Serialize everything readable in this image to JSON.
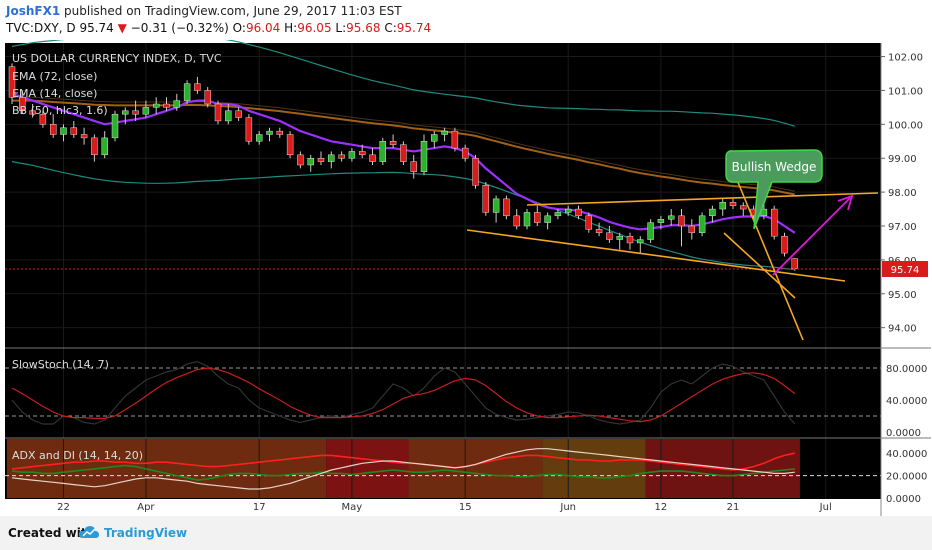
{
  "header": {
    "author": "JoshFX1",
    "published_text": "published on TradingView.com, June 29, 2017 11:03 EST",
    "symbol": "TVC:DXY, D",
    "last": "95.74",
    "change": "−0.31 (−0.32%)",
    "o_label": "O:",
    "o": "96.04",
    "h_label": "H:",
    "h": "96.05",
    "l_label": "L:",
    "l": "95.68",
    "c_label": "C:",
    "c": "95.74"
  },
  "panels": {
    "main": {
      "title": "US DOLLAR CURRENCY INDEX, D, TVC",
      "indicators": [
        "EMA (72, close)",
        "EMA (14, close)",
        "BB (50, hlc3, 1.6)"
      ],
      "y_ticks": [
        "102.00",
        "101.00",
        "100.00",
        "99.00",
        "98.00",
        "97.00",
        "96.00",
        "95.00",
        "94.00"
      ],
      "price_badge": "95.74",
      "annotation": "Bullish Wedge"
    },
    "stoch": {
      "title": "SlowStoch (14, 7)",
      "y_ticks": [
        "80.0000",
        "40.0000",
        "0.0000"
      ]
    },
    "adx": {
      "title": "ADX and DI (14, 14, 20)",
      "y_ticks": [
        "40.0000",
        "20.0000",
        "0.0000"
      ]
    }
  },
  "x_ticks": [
    "22",
    "Apr",
    "17",
    "May",
    "15",
    "Jun",
    "12",
    "21",
    "Jul"
  ],
  "footer": {
    "created_with": "Created with",
    "brand": "TradingView"
  },
  "colors": {
    "background": "#000000",
    "bull": "#2bb12b",
    "bear": "#d81b1b",
    "ema14": "#9b30ff",
    "ema72": "#b36a1a",
    "bb": "#1f8a80",
    "wedge": "#f5a623",
    "arrow": "#d81bd8",
    "callout_border": "#3fd84a"
  },
  "chart_data": [
    {
      "type": "candlestick",
      "title": "US DOLLAR CURRENCY INDEX, D, TVC",
      "ylim": [
        93.4,
        102.4
      ],
      "dates": [
        "Mar 15",
        "Mar 16",
        "Mar 17",
        "Mar 20",
        "Mar 21",
        "Mar 22",
        "Mar 23",
        "Mar 24",
        "Mar 27",
        "Mar 28",
        "Mar 29",
        "Mar 30",
        "Mar 31",
        "Apr 3",
        "Apr 4",
        "Apr 5",
        "Apr 6",
        "Apr 7",
        "Apr 10",
        "Apr 11",
        "Apr 12",
        "Apr 13",
        "Apr 14",
        "Apr 17",
        "Apr 18",
        "Apr 19",
        "Apr 20",
        "Apr 21",
        "Apr 24",
        "Apr 25",
        "Apr 26",
        "Apr 27",
        "Apr 28",
        "May 1",
        "May 2",
        "May 3",
        "May 4",
        "May 5",
        "May 8",
        "May 9",
        "May 10",
        "May 11",
        "May 12",
        "May 15",
        "May 16",
        "May 17",
        "May 18",
        "May 19",
        "May 22",
        "May 23",
        "May 24",
        "May 25",
        "May 26",
        "May 29",
        "May 30",
        "May 31",
        "Jun 1",
        "Jun 2",
        "Jun 5",
        "Jun 6",
        "Jun 7",
        "Jun 8",
        "Jun 9",
        "Jun 12",
        "Jun 13",
        "Jun 14",
        "Jun 15",
        "Jun 16",
        "Jun 19",
        "Jun 20",
        "Jun 21",
        "Jun 22",
        "Jun 23",
        "Jun 26",
        "Jun 27",
        "Jun 28",
        "Jun 29"
      ],
      "ohlc": [
        [
          101.7,
          101.8,
          100.6,
          100.8
        ],
        [
          100.8,
          101.0,
          100.3,
          100.4
        ],
        [
          100.4,
          100.6,
          100.2,
          100.3
        ],
        [
          100.3,
          100.4,
          99.9,
          100.0
        ],
        [
          100.0,
          100.3,
          99.6,
          99.7
        ],
        [
          99.7,
          100.0,
          99.5,
          99.9
        ],
        [
          99.9,
          100.1,
          99.6,
          99.7
        ],
        [
          99.7,
          99.9,
          99.4,
          99.6
        ],
        [
          99.6,
          99.7,
          98.9,
          99.1
        ],
        [
          99.1,
          99.8,
          99.0,
          99.6
        ],
        [
          99.6,
          100.4,
          99.5,
          100.3
        ],
        [
          100.3,
          100.5,
          100.0,
          100.4
        ],
        [
          100.4,
          100.7,
          100.1,
          100.3
        ],
        [
          100.3,
          100.7,
          100.2,
          100.5
        ],
        [
          100.5,
          100.8,
          100.3,
          100.6
        ],
        [
          100.6,
          100.8,
          100.4,
          100.5
        ],
        [
          100.5,
          100.9,
          100.4,
          100.7
        ],
        [
          100.7,
          101.3,
          100.6,
          101.2
        ],
        [
          101.2,
          101.4,
          100.9,
          101.0
        ],
        [
          101.0,
          101.1,
          100.5,
          100.6
        ],
        [
          100.6,
          100.7,
          100.0,
          100.1
        ],
        [
          100.1,
          100.6,
          100.0,
          100.4
        ],
        [
          100.4,
          100.5,
          100.1,
          100.2
        ],
        [
          100.2,
          100.3,
          99.4,
          99.5
        ],
        [
          99.5,
          99.8,
          99.4,
          99.7
        ],
        [
          99.7,
          99.9,
          99.5,
          99.8
        ],
        [
          99.8,
          99.9,
          99.6,
          99.7
        ],
        [
          99.7,
          99.8,
          99.0,
          99.1
        ],
        [
          99.1,
          99.2,
          98.7,
          98.8
        ],
        [
          98.8,
          99.1,
          98.6,
          99.0
        ],
        [
          99.0,
          99.2,
          98.8,
          98.9
        ],
        [
          98.9,
          99.2,
          98.7,
          99.1
        ],
        [
          99.1,
          99.2,
          98.9,
          99.0
        ],
        [
          99.0,
          99.3,
          98.9,
          99.2
        ],
        [
          99.2,
          99.4,
          99.0,
          99.1
        ],
        [
          99.1,
          99.3,
          98.8,
          98.9
        ],
        [
          98.9,
          99.6,
          98.8,
          99.5
        ],
        [
          99.5,
          99.7,
          99.3,
          99.4
        ],
        [
          99.4,
          99.5,
          98.8,
          98.9
        ],
        [
          98.9,
          99.1,
          98.4,
          98.6
        ],
        [
          98.6,
          99.7,
          98.5,
          99.5
        ],
        [
          99.5,
          99.8,
          99.3,
          99.7
        ],
        [
          99.7,
          99.9,
          99.5,
          99.8
        ],
        [
          99.8,
          99.9,
          99.2,
          99.3
        ],
        [
          99.3,
          99.4,
          98.9,
          99.0
        ],
        [
          99.0,
          99.1,
          98.1,
          98.2
        ],
        [
          98.2,
          98.3,
          97.3,
          97.4
        ],
        [
          97.4,
          97.9,
          97.1,
          97.8
        ],
        [
          97.8,
          97.9,
          97.2,
          97.3
        ],
        [
          97.3,
          97.5,
          96.9,
          97.0
        ],
        [
          97.0,
          97.5,
          96.9,
          97.4
        ],
        [
          97.4,
          97.6,
          97.0,
          97.1
        ],
        [
          97.1,
          97.4,
          96.9,
          97.3
        ],
        [
          97.3,
          97.5,
          97.2,
          97.4
        ],
        [
          97.4,
          97.6,
          97.3,
          97.5
        ],
        [
          97.5,
          97.6,
          97.2,
          97.3
        ],
        [
          97.3,
          97.4,
          96.8,
          96.9
        ],
        [
          96.9,
          97.1,
          96.7,
          96.8
        ],
        [
          96.8,
          97.0,
          96.5,
          96.6
        ],
        [
          96.6,
          96.8,
          96.3,
          96.7
        ],
        [
          96.7,
          96.8,
          96.3,
          96.5
        ],
        [
          96.5,
          96.7,
          96.2,
          96.6
        ],
        [
          96.6,
          97.2,
          96.5,
          97.1
        ],
        [
          97.1,
          97.3,
          96.9,
          97.2
        ],
        [
          97.2,
          97.5,
          97.0,
          97.3
        ],
        [
          97.3,
          97.5,
          96.4,
          97.0
        ],
        [
          97.0,
          97.2,
          96.6,
          96.8
        ],
        [
          96.8,
          97.4,
          96.7,
          97.3
        ],
        [
          97.3,
          97.6,
          97.1,
          97.5
        ],
        [
          97.5,
          97.8,
          97.3,
          97.7
        ],
        [
          97.7,
          97.8,
          97.5,
          97.6
        ],
        [
          97.6,
          97.7,
          97.3,
          97.5
        ],
        [
          97.5,
          97.6,
          97.2,
          97.3
        ],
        [
          97.3,
          97.7,
          97.2,
          97.5
        ],
        [
          97.5,
          97.6,
          96.6,
          96.7
        ],
        [
          96.7,
          96.8,
          96.1,
          96.2
        ],
        [
          96.04,
          96.05,
          95.68,
          95.74
        ]
      ],
      "series": [
        {
          "name": "EMA (14, close)",
          "values": [
            100.9,
            100.8,
            100.7,
            100.6,
            100.5,
            100.4,
            100.3,
            100.2,
            100.1,
            100.0,
            100.05,
            100.1,
            100.15,
            100.2,
            100.3,
            100.4,
            100.5,
            100.65,
            100.7,
            100.7,
            100.6,
            100.6,
            100.55,
            100.4,
            100.3,
            100.2,
            100.1,
            99.95,
            99.8,
            99.7,
            99.6,
            99.5,
            99.45,
            99.4,
            99.35,
            99.3,
            99.3,
            99.3,
            99.25,
            99.2,
            99.25,
            99.3,
            99.35,
            99.3,
            99.2,
            99.0,
            98.7,
            98.45,
            98.2,
            97.95,
            97.8,
            97.65,
            97.55,
            97.5,
            97.48,
            97.45,
            97.35,
            97.25,
            97.12,
            97.03,
            96.95,
            96.9,
            96.93,
            96.97,
            97.02,
            97.03,
            97.0,
            97.05,
            97.12,
            97.2,
            97.25,
            97.28,
            97.28,
            97.3,
            97.2,
            97.0,
            96.8
          ]
        },
        {
          "name": "EMA (72, close)",
          "values": [
            100.7,
            100.7,
            100.7,
            100.68,
            100.66,
            100.64,
            100.62,
            100.6,
            100.58,
            100.57,
            100.56,
            100.56,
            100.56,
            100.56,
            100.56,
            100.56,
            100.56,
            100.57,
            100.57,
            100.56,
            100.54,
            100.53,
            100.51,
            100.48,
            100.45,
            100.42,
            100.39,
            100.35,
            100.31,
            100.27,
            100.23,
            100.19,
            100.15,
            100.11,
            100.07,
            100.03,
            100.0,
            99.97,
            99.93,
            99.88,
            99.85,
            99.82,
            99.79,
            99.75,
            99.71,
            99.66,
            99.58,
            99.5,
            99.42,
            99.34,
            99.27,
            99.2,
            99.13,
            99.07,
            99.01,
            98.95,
            98.88,
            98.82,
            98.75,
            98.69,
            98.62,
            98.56,
            98.51,
            98.46,
            98.42,
            98.37,
            98.32,
            98.28,
            98.25,
            98.21,
            98.18,
            98.15,
            98.12,
            98.09,
            98.05,
            97.99,
            97.93
          ]
        }
      ],
      "trendlines": [
        "wedge-upper",
        "wedge-lower",
        "breakout-down-1",
        "breakout-down-2",
        "projection-arrow"
      ],
      "annotations": [
        "Bullish Wedge"
      ]
    },
    {
      "type": "line",
      "title": "SlowStoch (14, 7)",
      "ylim": [
        0,
        100
      ],
      "levels": [
        80,
        20
      ],
      "series": [
        {
          "name": "%K",
          "values": [
            40,
            25,
            15,
            10,
            10,
            20,
            18,
            12,
            10,
            15,
            30,
            45,
            55,
            65,
            70,
            75,
            78,
            85,
            88,
            82,
            70,
            60,
            55,
            40,
            30,
            25,
            20,
            15,
            12,
            15,
            18,
            20,
            18,
            22,
            25,
            30,
            45,
            60,
            55,
            45,
            55,
            70,
            80,
            75,
            60,
            45,
            30,
            22,
            18,
            15,
            16,
            18,
            20,
            22,
            25,
            24,
            20,
            15,
            12,
            10,
            12,
            15,
            30,
            50,
            60,
            65,
            60,
            70,
            80,
            85,
            82,
            75,
            70,
            65,
            45,
            25,
            10
          ]
        },
        {
          "name": "%D",
          "values": [
            55,
            48,
            40,
            32,
            25,
            20,
            18,
            18,
            17,
            17,
            20,
            28,
            36,
            45,
            54,
            62,
            68,
            73,
            78,
            80,
            78,
            74,
            68,
            62,
            54,
            47,
            40,
            32,
            26,
            21,
            18,
            18,
            18,
            19,
            20,
            23,
            28,
            35,
            42,
            46,
            48,
            52,
            58,
            64,
            67,
            65,
            58,
            48,
            38,
            30,
            24,
            20,
            18,
            18,
            19,
            20,
            21,
            20,
            18,
            16,
            14,
            13,
            15,
            20,
            28,
            36,
            44,
            52,
            60,
            66,
            70,
            73,
            74,
            72,
            67,
            58,
            48
          ]
        }
      ]
    },
    {
      "type": "line",
      "title": "ADX and DI (14, 14, 20)",
      "ylim": [
        0,
        50
      ],
      "levels": [
        20
      ],
      "series": [
        {
          "name": "ADX",
          "values": [
            18,
            17,
            16,
            15,
            14,
            13,
            12,
            11,
            10,
            11,
            13,
            15,
            17,
            18,
            18,
            17,
            16,
            15,
            13,
            12,
            11,
            10,
            9,
            8,
            8,
            9,
            11,
            13,
            16,
            19,
            22,
            25,
            27,
            29,
            31,
            32,
            33,
            33,
            32,
            31,
            30,
            29,
            28,
            27,
            28,
            30,
            33,
            36,
            39,
            41,
            43,
            44,
            44,
            43,
            42,
            41,
            40,
            39,
            38,
            37,
            36,
            35,
            34,
            33,
            32,
            31,
            30,
            29,
            28,
            27,
            26,
            25,
            24,
            23,
            22,
            22,
            23
          ]
        },
        {
          "name": "+DI",
          "values": [
            24,
            23,
            23,
            22,
            22,
            23,
            24,
            25,
            26,
            27,
            28,
            29,
            28,
            26,
            24,
            22,
            20,
            18,
            16,
            17,
            19,
            21,
            22,
            22,
            21,
            20,
            20,
            21,
            22,
            22,
            23,
            22,
            22,
            21,
            22,
            23,
            24,
            25,
            24,
            23,
            23,
            24,
            25,
            24,
            23,
            22,
            21,
            20,
            20,
            19,
            19,
            20,
            21,
            21,
            20,
            19,
            19,
            18,
            18,
            19,
            20,
            22,
            23,
            24,
            24,
            24,
            23,
            22,
            21,
            20,
            20,
            21,
            22,
            23,
            24,
            25,
            26
          ]
        },
        {
          "name": "-DI",
          "values": [
            26,
            27,
            28,
            29,
            30,
            31,
            32,
            32,
            33,
            33,
            32,
            32,
            31,
            31,
            32,
            32,
            31,
            30,
            29,
            28,
            28,
            29,
            30,
            31,
            32,
            33,
            34,
            35,
            36,
            37,
            38,
            38,
            37,
            36,
            35,
            34,
            33,
            32,
            31,
            31,
            30,
            29,
            28,
            27,
            28,
            30,
            32,
            34,
            36,
            37,
            38,
            38,
            37,
            36,
            35,
            34,
            34,
            33,
            33,
            34,
            34,
            34,
            33,
            32,
            31,
            30,
            29,
            28,
            27,
            26,
            25,
            26,
            28,
            31,
            35,
            38,
            40
          ]
        }
      ]
    }
  ]
}
